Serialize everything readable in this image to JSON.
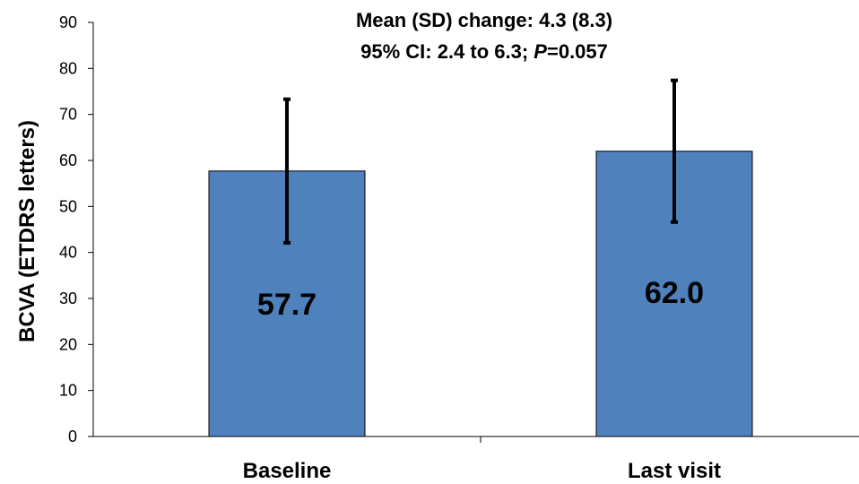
{
  "chart_data": {
    "type": "bar",
    "categories": [
      "Baseline",
      "Last visit"
    ],
    "values": [
      57.7,
      62.0
    ],
    "error": [
      15.6,
      15.4
    ],
    "data_labels": [
      "57.7",
      "62.0"
    ],
    "ylabel": "BCVA (ETDRS letters)",
    "ylim": [
      0,
      90
    ],
    "yticks": [
      0,
      10,
      20,
      30,
      40,
      50,
      60,
      70,
      80,
      90
    ],
    "annotation": {
      "line1": "Mean (SD) change: 4.3 (8.3)",
      "line2_prefix": "95% CI: 2.4 to 6.3; ",
      "line2_italic": "P",
      "line2_suffix": "=0.057"
    },
    "bar_color": "#4f81bd",
    "grid": false,
    "legend": "none"
  }
}
